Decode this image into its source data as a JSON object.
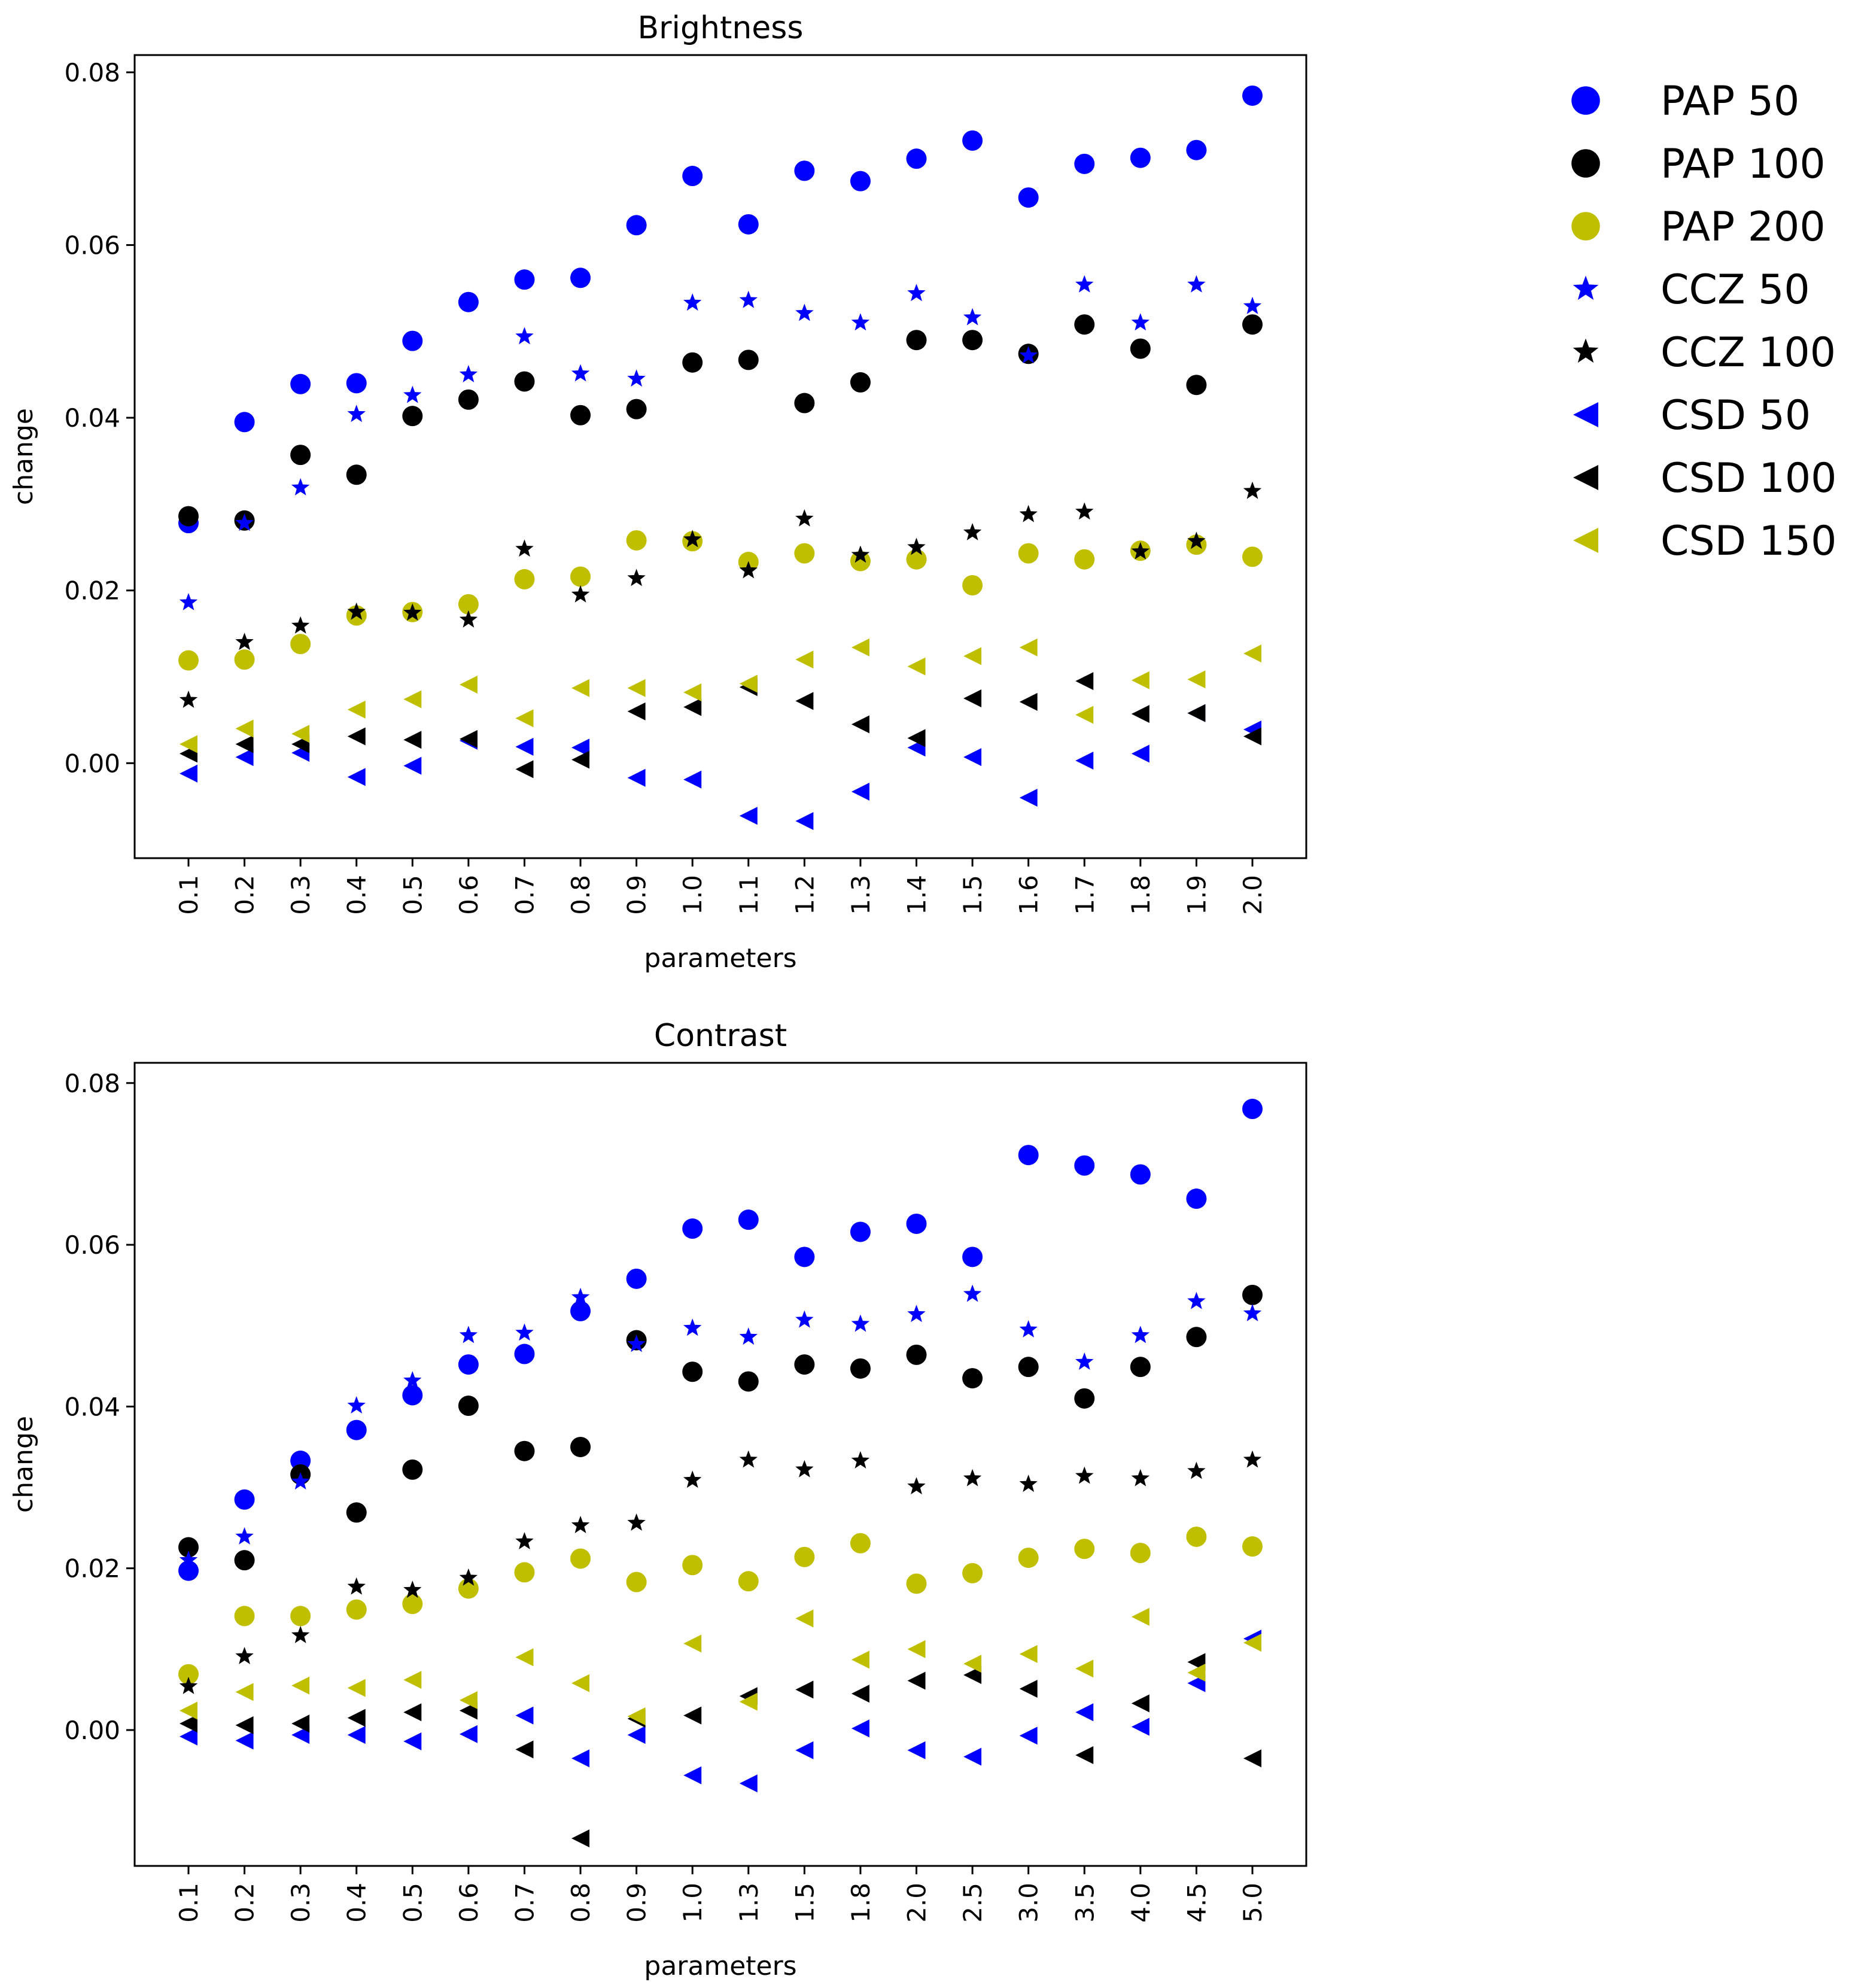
{
  "legend": {
    "placement": "right",
    "entries": [
      {
        "name": "PAP 50",
        "marker": "circle",
        "color": "#0000ff"
      },
      {
        "name": "PAP 100",
        "marker": "circle",
        "color": "#000000"
      },
      {
        "name": "PAP 200",
        "marker": "circle",
        "color": "#bfbf00"
      },
      {
        "name": "CCZ 50",
        "marker": "star",
        "color": "#0000ff"
      },
      {
        "name": "CCZ 100",
        "marker": "star",
        "color": "#000000"
      },
      {
        "name": "CSD 50",
        "marker": "triangle-left",
        "color": "#0000ff"
      },
      {
        "name": "CSD 100",
        "marker": "triangle-left",
        "color": "#000000"
      },
      {
        "name": "CSD 150",
        "marker": "triangle-left",
        "color": "#bfbf00"
      }
    ]
  },
  "chart_data": [
    {
      "type": "scatter",
      "title": "Brightness",
      "xlabel": "parameters",
      "ylabel": "change",
      "ylim": [
        -0.011,
        0.082
      ],
      "yticks": [
        "0.00",
        "0.02",
        "0.04",
        "0.06",
        "0.08"
      ],
      "categories": [
        "0.1",
        "0.2",
        "0.3",
        "0.4",
        "0.5",
        "0.6",
        "0.7",
        "0.8",
        "0.9",
        "1.0",
        "1.1",
        "1.2",
        "1.3",
        "1.4",
        "1.5",
        "1.6",
        "1.7",
        "1.8",
        "1.9",
        "2.0"
      ],
      "series": [
        {
          "name": "PAP 50",
          "values": [
            0.0278,
            0.0395,
            0.0439,
            0.044,
            0.0489,
            0.0534,
            0.056,
            0.0562,
            0.0623,
            0.068,
            0.0624,
            0.0686,
            0.0674,
            0.07,
            0.0721,
            0.0655,
            0.0694,
            0.0701,
            0.071,
            0.0773
          ]
        },
        {
          "name": "PAP 100",
          "values": [
            0.0286,
            0.0281,
            0.0357,
            0.0334,
            0.0402,
            0.0421,
            0.0442,
            0.0403,
            0.041,
            0.0464,
            0.0467,
            0.0417,
            0.0441,
            0.049,
            0.049,
            0.0474,
            0.0508,
            0.048,
            0.0438,
            0.0508
          ]
        },
        {
          "name": "PAP 200",
          "values": [
            0.0119,
            0.012,
            0.0138,
            0.0171,
            0.0175,
            0.0184,
            0.0213,
            0.0216,
            0.0258,
            0.0257,
            0.0233,
            0.0243,
            0.0234,
            0.0236,
            0.0206,
            0.0243,
            0.0236,
            0.0246,
            0.0253,
            0.0239
          ]
        },
        {
          "name": "CCZ 50",
          "values": [
            0.0186,
            0.0278,
            0.0319,
            0.0404,
            0.0426,
            0.045,
            0.0494,
            0.0451,
            0.0445,
            0.0533,
            0.0536,
            0.0521,
            0.051,
            0.0544,
            0.0516,
            0.0472,
            0.0554,
            0.051,
            0.0554,
            0.0529
          ]
        },
        {
          "name": "CCZ 100",
          "values": [
            0.0073,
            0.014,
            0.0159,
            0.0175,
            0.0174,
            0.0166,
            0.0248,
            0.0195,
            0.0214,
            0.0259,
            0.0223,
            0.0283,
            0.0241,
            0.025,
            0.0267,
            0.0288,
            0.0291,
            0.0245,
            0.0257,
            0.0315
          ]
        },
        {
          "name": "CSD 50",
          "values": [
            -0.0012,
            0.0007,
            0.0012,
            -0.0016,
            -0.0003,
            0.0026,
            0.0019,
            0.0018,
            -0.0017,
            -0.0019,
            -0.0061,
            -0.0067,
            -0.0033,
            0.0018,
            0.0007,
            -0.004,
            0.0003,
            0.0011,
            0.0058,
            0.0039
          ]
        },
        {
          "name": "CSD 100",
          "values": [
            0.0011,
            0.0022,
            0.0022,
            0.0031,
            0.0027,
            0.0028,
            -0.0007,
            0.0004,
            0.006,
            0.0065,
            0.0088,
            0.0072,
            0.0045,
            0.0029,
            0.0075,
            0.0071,
            0.0095,
            0.0057,
            0.0058,
            0.0031
          ]
        },
        {
          "name": "CSD 150",
          "values": [
            0.0022,
            0.004,
            0.0034,
            0.0062,
            0.0074,
            0.0091,
            0.0052,
            0.0087,
            0.0087,
            0.0082,
            0.0092,
            0.012,
            0.0134,
            0.0112,
            0.0124,
            0.0134,
            0.0056,
            0.0096,
            0.0097,
            0.0127
          ]
        }
      ]
    },
    {
      "type": "scatter",
      "title": "Contrast",
      "xlabel": "parameters",
      "ylabel": "change",
      "ylim": [
        -0.0168,
        0.0825
      ],
      "yticks": [
        "0.00",
        "0.02",
        "0.04",
        "0.06",
        "0.08"
      ],
      "categories": [
        "0.1",
        "0.2",
        "0.3",
        "0.4",
        "0.5",
        "0.6",
        "0.7",
        "0.8",
        "0.9",
        "1.0",
        "1.3",
        "1.5",
        "1.8",
        "2.0",
        "2.5",
        "3.0",
        "3.5",
        "4.0",
        "4.5",
        "5.0"
      ],
      "series": [
        {
          "name": "PAP 50",
          "values": [
            0.0197,
            0.0285,
            0.0333,
            0.0371,
            0.0414,
            0.0452,
            0.0465,
            0.0518,
            0.0558,
            0.062,
            0.0631,
            0.0585,
            0.0616,
            0.0626,
            0.0585,
            0.0711,
            0.0698,
            0.0687,
            0.0657,
            0.0768
          ]
        },
        {
          "name": "PAP 100",
          "values": [
            0.0226,
            0.021,
            0.0316,
            0.0269,
            0.0322,
            0.0401,
            0.0345,
            0.035,
            0.0482,
            0.0443,
            0.0431,
            0.0452,
            0.0447,
            0.0464,
            0.0435,
            0.0449,
            0.041,
            0.0449,
            0.0486,
            0.0538
          ]
        },
        {
          "name": "PAP 200",
          "values": [
            0.0069,
            0.0141,
            0.0141,
            0.0149,
            0.0156,
            0.0175,
            0.0195,
            0.0212,
            0.0183,
            0.0204,
            0.0184,
            0.0214,
            0.0231,
            0.0181,
            0.0194,
            0.0213,
            0.0224,
            0.0219,
            0.0239,
            0.0227
          ]
        },
        {
          "name": "CCZ 50",
          "values": [
            0.021,
            0.0239,
            0.0307,
            0.0401,
            0.0432,
            0.0488,
            0.0491,
            0.0535,
            0.0477,
            0.0497,
            0.0486,
            0.0507,
            0.0502,
            0.0514,
            0.0539,
            0.0495,
            0.0455,
            0.0488,
            0.053,
            0.0515
          ]
        },
        {
          "name": "CCZ 100",
          "values": [
            0.0054,
            0.0091,
            0.0117,
            0.0177,
            0.0173,
            0.0188,
            0.0233,
            0.0253,
            0.0256,
            0.0309,
            0.0334,
            0.0322,
            0.0333,
            0.0301,
            0.0311,
            0.0304,
            0.0314,
            0.0311,
            0.032,
            0.0334
          ]
        },
        {
          "name": "CSD 50",
          "values": [
            -0.0008,
            -0.0013,
            -0.0006,
            -0.0006,
            -0.0014,
            -0.0005,
            0.0018,
            -0.0035,
            -0.0006,
            -0.0056,
            -0.0066,
            -0.0025,
            0.0002,
            -0.0025,
            -0.0033,
            -0.0007,
            0.0022,
            0.0004,
            0.0058,
            0.0113
          ]
        },
        {
          "name": "CSD 100",
          "values": [
            0.0008,
            0.0006,
            0.0008,
            0.0015,
            0.0022,
            0.0024,
            -0.0024,
            -0.0134,
            0.0014,
            0.0018,
            0.0042,
            0.005,
            0.0045,
            0.0061,
            0.0068,
            0.0051,
            -0.0031,
            0.0033,
            0.0084,
            -0.0035
          ]
        },
        {
          "name": "CSD 150",
          "values": [
            0.0024,
            0.0047,
            0.0055,
            0.0052,
            0.0062,
            0.0037,
            0.009,
            0.0058,
            0.0017,
            0.0107,
            0.0035,
            0.0138,
            0.0087,
            0.01,
            0.0082,
            0.0094,
            0.0076,
            0.014,
            0.0071,
            0.0108
          ]
        }
      ]
    }
  ]
}
